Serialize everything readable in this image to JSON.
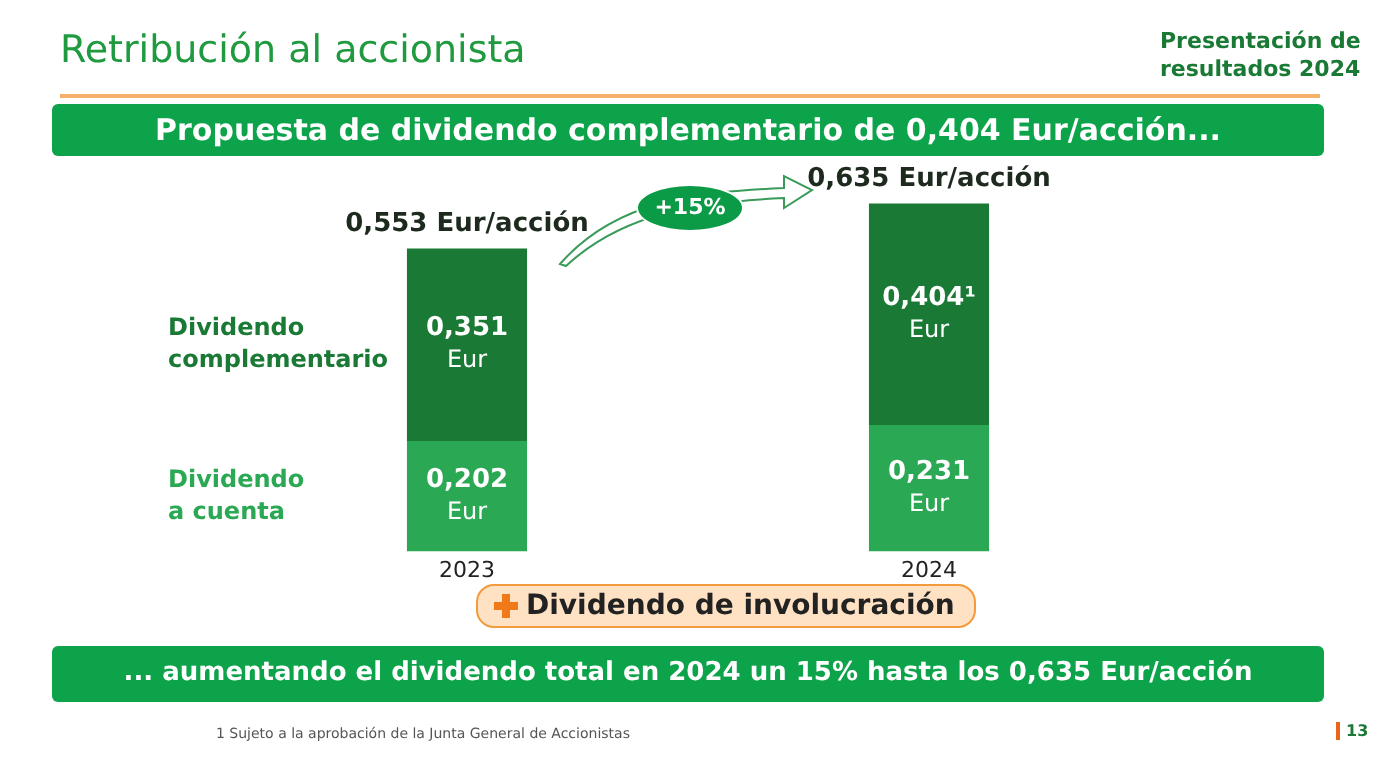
{
  "chart_data": {
    "type": "bar",
    "stacked": true,
    "title": "Retribución al accionista",
    "subtitle": "Propuesta de dividendo complementario de 0,404 Eur/acción...",
    "categories": [
      "2023",
      "2024"
    ],
    "series": [
      {
        "name": "Dividendo a cuenta",
        "color": "#2aa853",
        "values": [
          0.202,
          0.231
        ],
        "value_labels": [
          "0,202 Eur",
          "0,231 Eur"
        ]
      },
      {
        "name": "Dividendo complementario",
        "color": "#1a7a35",
        "values": [
          0.351,
          0.404
        ],
        "value_labels": [
          "0,351 Eur",
          "0,404¹ Eur"
        ]
      }
    ],
    "totals": [
      "0,553 Eur/acción",
      "0,635 Eur/acción"
    ],
    "tick_labels": "x",
    "grid": false,
    "legend": false,
    "annotations": [
      "Presentación de resultados 2024",
      "+15%",
      "Dividendo de involucración",
      "... aumentando el dividendo total en 2024 un 15% hasta los 0,635 Eur/acción",
      "1   Sujeto a la aprobación de la Junta General de Accionistas",
      "13"
    ]
  }
}
